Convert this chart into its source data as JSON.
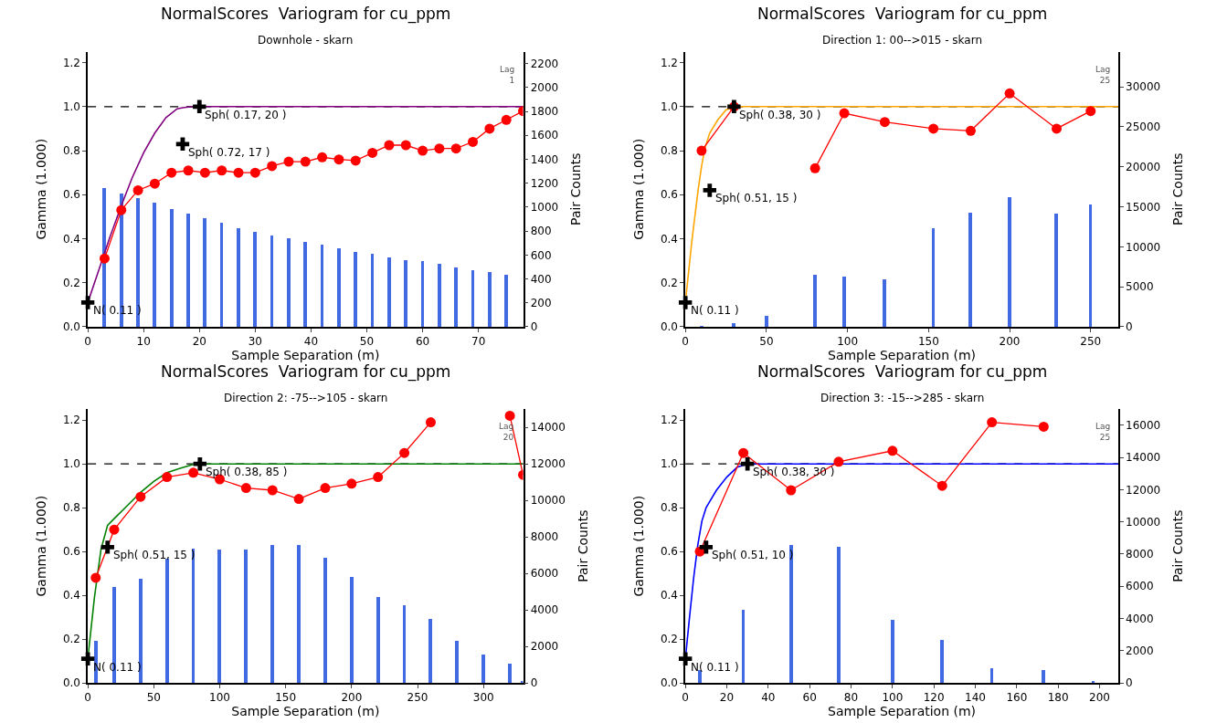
{
  "chart_data": [
    {
      "type": "line",
      "title": "NormalScores  Variogram for cu_ppm",
      "subtitle": "Downhole - skarn",
      "xlabel": "Sample Separation (m)",
      "ylabel": "Gamma (1.000)",
      "y2label": "Pair Counts",
      "xlim": [
        0,
        78
      ],
      "xticks": [
        0,
        10,
        20,
        30,
        40,
        50,
        60,
        70
      ],
      "ylim": [
        0,
        1.25
      ],
      "yticks": [
        {
          "value": 0,
          "label": "0.0"
        },
        {
          "value": 0.2,
          "label": "0.2"
        },
        {
          "value": 0.4,
          "label": "0.4"
        },
        {
          "value": 0.6,
          "label": "0.6"
        },
        {
          "value": 0.8,
          "label": "0.8"
        },
        {
          "value": 1.0,
          "label": "1.0"
        },
        {
          "value": 1.2,
          "label": "1.2"
        }
      ],
      "y2lim": [
        0,
        2300
      ],
      "y2ticks": [
        0,
        200,
        400,
        600,
        800,
        1000,
        1200,
        1400,
        1600,
        1800,
        2000,
        2200
      ],
      "series": [
        {
          "type": "bar",
          "axis": "y2",
          "color": "#4169e1",
          "x": [
            3,
            6,
            9,
            12,
            15,
            18,
            21,
            24,
            27,
            30,
            33,
            36,
            39,
            42,
            45,
            48,
            51,
            54,
            57,
            60,
            63,
            66,
            69,
            72,
            75
          ],
          "values": [
            1160,
            1120,
            1080,
            1040,
            990,
            950,
            910,
            870,
            830,
            800,
            770,
            740,
            710,
            690,
            660,
            630,
            610,
            580,
            560,
            550,
            530,
            500,
            480,
            460,
            440
          ]
        },
        {
          "type": "scatter",
          "color": "#000000",
          "marker": "cross",
          "x": [
            0,
            17,
            20
          ],
          "values": [
            0.11,
            0.83,
            1.0
          ]
        },
        {
          "color": "#800080",
          "marker": "none",
          "x": [
            0,
            2,
            4,
            6,
            8,
            10,
            12,
            14,
            16,
            17,
            18,
            20,
            78
          ],
          "values": [
            0.11,
            0.26,
            0.41,
            0.55,
            0.68,
            0.79,
            0.88,
            0.95,
            0.99,
            0.995,
            0.998,
            1.0,
            1.0
          ]
        },
        {
          "color": "#ff0000",
          "marker": "circle",
          "x": [
            3,
            6,
            9,
            12,
            15,
            18,
            21,
            24,
            27,
            30,
            33,
            36,
            39,
            42,
            45,
            48,
            51,
            54,
            57,
            60,
            63,
            66,
            69,
            72,
            75,
            78
          ],
          "values": [
            0.31,
            0.53,
            0.62,
            0.65,
            0.7,
            0.71,
            0.7,
            0.71,
            0.7,
            0.7,
            0.73,
            0.75,
            0.75,
            0.77,
            0.76,
            0.755,
            0.79,
            0.825,
            0.825,
            0.8,
            0.81,
            0.81,
            0.84,
            0.9,
            0.94,
            0.98
          ]
        }
      ],
      "ref_lines": [
        {
          "axis": "y",
          "value": 1.0,
          "color": "#000000",
          "line_style": "dashed"
        }
      ],
      "annotations": [
        {
          "text": "N( 0.11 )",
          "x": 0,
          "y": 0.11
        },
        {
          "text": "Sph( 0.72, 17 )",
          "x": 17,
          "y": 0.83
        },
        {
          "text": "Sph( 0.17, 20 )",
          "x": 20,
          "y": 1.0
        },
        "Lag\n1"
      ]
    },
    {
      "type": "line",
      "title": "NormalScores  Variogram for cu_ppm",
      "subtitle": "Direction 1: 00-->015 - skarn",
      "xlabel": "Sample Separation (m)",
      "ylabel": "Gamma (1.000)",
      "y2label": "Pair Counts",
      "xlim": [
        0,
        267
      ],
      "xticks": [
        0,
        50,
        100,
        150,
        200,
        250
      ],
      "ylim": [
        0,
        1.25
      ],
      "yticks": [
        {
          "value": 0,
          "label": "0.0"
        },
        {
          "value": 0.2,
          "label": "0.2"
        },
        {
          "value": 0.4,
          "label": "0.4"
        },
        {
          "value": 0.6,
          "label": "0.6"
        },
        {
          "value": 0.8,
          "label": "0.8"
        },
        {
          "value": 1.0,
          "label": "1.0"
        },
        {
          "value": 1.2,
          "label": "1.2"
        }
      ],
      "y2lim": [
        0,
        34400
      ],
      "y2ticks": [
        0,
        5000,
        10000,
        15000,
        20000,
        25000,
        30000
      ],
      "series": [
        {
          "type": "bar",
          "axis": "y2",
          "color": "#4169e1",
          "x": [
            10,
            30,
            50,
            80,
            98,
            123,
            153,
            176,
            200,
            229,
            250
          ],
          "values": [
            200,
            500,
            1400,
            6500,
            6300,
            6000,
            12400,
            14300,
            16300,
            14200,
            15300
          ]
        },
        {
          "type": "scatter",
          "color": "#000000",
          "marker": "cross",
          "x": [
            0,
            15,
            30
          ],
          "values": [
            0.11,
            0.62,
            1.0
          ]
        },
        {
          "color": "#ffa500",
          "marker": "none",
          "x": [
            0,
            2,
            4,
            6,
            8,
            10,
            12,
            15,
            20,
            25,
            30,
            267
          ],
          "values": [
            0.11,
            0.25,
            0.39,
            0.51,
            0.63,
            0.73,
            0.81,
            0.88,
            0.94,
            0.985,
            1.0,
            1.0
          ]
        },
        {
          "color": "#ff0000",
          "marker": "circle",
          "x": [
            10,
            30,
            50,
            80,
            98,
            123,
            153,
            176,
            200,
            229,
            250
          ],
          "values": [
            0.8,
            1.0,
            null,
            0.72,
            0.97,
            0.93,
            0.9,
            0.89,
            1.06,
            0.9,
            0.98
          ]
        }
      ],
      "ref_lines": [
        {
          "axis": "y",
          "value": 1.0,
          "color": "#000000",
          "line_style": "dashed"
        }
      ],
      "annotations": [
        {
          "text": "N( 0.11 )",
          "x": 0,
          "y": 0.11
        },
        {
          "text": "Sph( 0.51, 15 )",
          "x": 15,
          "y": 0.62
        },
        {
          "text": "Sph( 0.38, 30 )",
          "x": 30,
          "y": 1.0
        },
        "Lag\n25"
      ]
    },
    {
      "type": "line",
      "title": "NormalScores  Variogram for cu_ppm",
      "subtitle": "Direction 2: -75-->105 - skarn",
      "xlabel": "Sample Separation (m)",
      "ylabel": "Gamma (1.000)",
      "y2label": "Pair Counts",
      "xlim": [
        0,
        330
      ],
      "xticks": [
        0,
        50,
        100,
        150,
        200,
        250,
        300
      ],
      "ylim": [
        0,
        1.25
      ],
      "yticks": [
        {
          "value": 0,
          "label": "0.0"
        },
        {
          "value": 0.2,
          "label": "0.2"
        },
        {
          "value": 0.4,
          "label": "0.4"
        },
        {
          "value": 0.6,
          "label": "0.6"
        },
        {
          "value": 0.8,
          "label": "0.8"
        },
        {
          "value": 1.0,
          "label": "1.0"
        },
        {
          "value": 1.2,
          "label": "1.2"
        }
      ],
      "y2lim": [
        0,
        15000
      ],
      "y2ticks": [
        0,
        2000,
        4000,
        6000,
        8000,
        10000,
        12000,
        14000
      ],
      "series": [
        {
          "type": "bar",
          "axis": "y2",
          "color": "#4169e1",
          "x": [
            6,
            20,
            40,
            60,
            80,
            100,
            120,
            140,
            160,
            180,
            200,
            220,
            240,
            260,
            280,
            300,
            320,
            330
          ],
          "values": [
            2300,
            5230,
            5720,
            6800,
            7340,
            7280,
            7280,
            7530,
            7530,
            6840,
            5810,
            4710,
            4250,
            3480,
            2300,
            1560,
            1060,
            100
          ]
        },
        {
          "type": "scatter",
          "color": "#000000",
          "marker": "cross",
          "x": [
            0,
            15,
            85
          ],
          "values": [
            0.11,
            0.62,
            1.0
          ]
        },
        {
          "color": "#008000",
          "marker": "none",
          "x": [
            0,
            5,
            10,
            15,
            20,
            30,
            40,
            50,
            60,
            70,
            80,
            85,
            330
          ],
          "values": [
            0.11,
            0.39,
            0.61,
            0.72,
            0.75,
            0.81,
            0.87,
            0.92,
            0.96,
            0.98,
            0.998,
            1.0,
            1.0
          ]
        },
        {
          "color": "#ff0000",
          "marker": "circle",
          "x": [
            6,
            20,
            40,
            60,
            80,
            100,
            120,
            140,
            160,
            180,
            200,
            220,
            240,
            260,
            280,
            300,
            320,
            330
          ],
          "values": [
            0.48,
            0.7,
            0.85,
            0.94,
            0.96,
            0.93,
            0.89,
            0.88,
            0.84,
            0.89,
            0.91,
            0.94,
            1.05,
            1.19,
            null,
            null,
            1.22,
            0.95
          ]
        }
      ],
      "ref_lines": [
        {
          "axis": "y",
          "value": 1.0,
          "color": "#000000",
          "line_style": "dashed"
        }
      ],
      "annotations": [
        {
          "text": "N( 0.11 )",
          "x": 0,
          "y": 0.11
        },
        {
          "text": "Sph( 0.51, 15 )",
          "x": 15,
          "y": 0.62
        },
        {
          "text": "Sph( 0.38, 85 )",
          "x": 85,
          "y": 1.0
        },
        "Lag\n20"
      ]
    },
    {
      "type": "line",
      "title": "NormalScores  Variogram for cu_ppm",
      "subtitle": "Direction 3: -15-->285 - skarn",
      "xlabel": "Sample Separation (m)",
      "ylabel": "Gamma (1.000)",
      "y2label": "Pair Counts",
      "xlim": [
        0,
        209
      ],
      "xticks": [
        0,
        20,
        40,
        60,
        80,
        100,
        120,
        140,
        160,
        180,
        200
      ],
      "ylim": [
        0,
        1.25
      ],
      "yticks": [
        {
          "value": 0,
          "label": "0.0"
        },
        {
          "value": 0.2,
          "label": "0.2"
        },
        {
          "value": 0.4,
          "label": "0.4"
        },
        {
          "value": 0.6,
          "label": "0.6"
        },
        {
          "value": 0.8,
          "label": "0.8"
        },
        {
          "value": 1.0,
          "label": "1.0"
        },
        {
          "value": 1.2,
          "label": "1.2"
        }
      ],
      "y2lim": [
        0,
        17000
      ],
      "y2ticks": [
        0,
        2000,
        4000,
        6000,
        8000,
        10000,
        12000,
        14000,
        16000
      ],
      "series": [
        {
          "type": "bar",
          "axis": "y2",
          "color": "#4169e1",
          "x": [
            7,
            28,
            51,
            74,
            100,
            124,
            148,
            173,
            197
          ],
          "values": [
            800,
            4520,
            8570,
            8460,
            3920,
            2650,
            910,
            760,
            100
          ]
        },
        {
          "type": "scatter",
          "color": "#000000",
          "marker": "cross",
          "x": [
            0,
            10,
            30
          ],
          "values": [
            0.11,
            0.62,
            1.0
          ]
        },
        {
          "color": "#0000ff",
          "marker": "none",
          "x": [
            0,
            2,
            4,
            6,
            8,
            10,
            15,
            20,
            25,
            30,
            209
          ],
          "values": [
            0.11,
            0.3,
            0.48,
            0.63,
            0.74,
            0.8,
            0.88,
            0.94,
            0.985,
            1.0,
            1.0
          ]
        },
        {
          "color": "#ff0000",
          "marker": "circle",
          "x": [
            7,
            28,
            51,
            74,
            100,
            124,
            148,
            173
          ],
          "values": [
            0.6,
            1.05,
            0.88,
            1.01,
            1.06,
            0.9,
            1.19,
            1.17
          ]
        }
      ],
      "ref_lines": [
        {
          "axis": "y",
          "value": 1.0,
          "color": "#000000",
          "line_style": "dashed"
        }
      ],
      "annotations": [
        {
          "text": "N( 0.11 )",
          "x": 0,
          "y": 0.11
        },
        {
          "text": "Sph( 0.51, 10 )",
          "x": 10,
          "y": 0.62
        },
        {
          "text": "Sph( 0.38, 30 )",
          "x": 30,
          "y": 1.0
        },
        "Lag\n25"
      ]
    }
  ]
}
